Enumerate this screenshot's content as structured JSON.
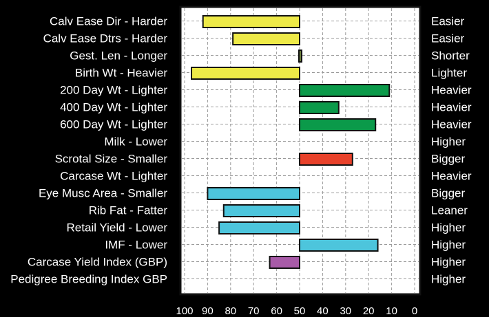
{
  "chart_data": {
    "type": "bar",
    "orientation": "horizontal",
    "title": "",
    "xlabel": "",
    "ylabel": "",
    "xlim": [
      100,
      0
    ],
    "x_reversed": true,
    "x_ticks": [
      100,
      90,
      80,
      70,
      60,
      50,
      40,
      30,
      20,
      10,
      0
    ],
    "baseline": 50,
    "grid": true,
    "categories_left": [
      "Calv Ease Dir - Harder",
      "Calv Ease Dtrs - Harder",
      "Gest. Len - Longer",
      "Birth Wt - Heavier",
      "200 Day Wt - Lighter",
      "400 Day Wt - Lighter",
      "600 Day Wt - Lighter",
      "Milk - Lower",
      "Scrotal Size - Smaller",
      "Carcase Wt - Lighter",
      "Eye Musc Area - Smaller",
      "Rib Fat - Fatter",
      "Retail Yield - Lower",
      "IMF - Lower",
      "Carcase Yield Index (GBP)",
      "Pedigree Breeding Index GBP"
    ],
    "categories_right": [
      "Easier",
      "Easier",
      "Shorter",
      "Lighter",
      "Heavier",
      "Heavier",
      "Heavier",
      "Higher",
      "Bigger",
      "Heavier",
      "Bigger",
      "Leaner",
      "Higher",
      "Higher",
      "Higher",
      "Higher"
    ],
    "values": [
      92,
      79,
      49,
      97,
      11,
      33,
      17,
      null,
      27,
      null,
      90,
      83,
      85,
      16,
      63,
      null
    ],
    "colors": [
      "#eeea48",
      "#eeea48",
      "#6b7d3c",
      "#eeea48",
      "#0b9a4a",
      "#0b9a4a",
      "#0b9a4a",
      "#0b9a4a",
      "#e8412a",
      "#e8412a",
      "#4dc5dc",
      "#4dc5dc",
      "#4dc5dc",
      "#4dc5dc",
      "#a85ba8",
      "#a85ba8"
    ]
  }
}
